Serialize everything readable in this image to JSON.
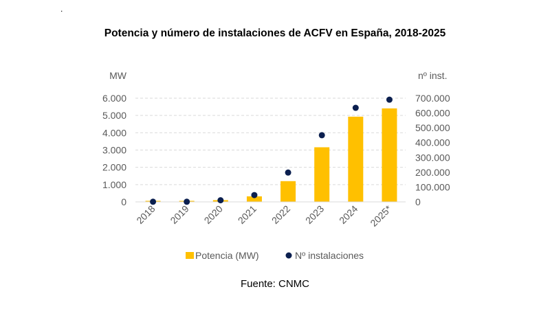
{
  "top_mark": ".",
  "source": "Fuente: CNMC",
  "chart_data": {
    "type": "bar+scatter",
    "title": "Potencia y número de instalaciones de ACFV en España, 2018-2025",
    "categories": [
      "2018",
      "2019",
      "2020",
      "2021",
      "2022",
      "2023",
      "2024",
      "2025*"
    ],
    "ylabel_left": "MW",
    "ylabel_right": "nº inst.",
    "ylim_left": [
      0,
      6000
    ],
    "ylim_right": [
      0,
      700000
    ],
    "yticks_left": [
      "0",
      "1.000",
      "2.000",
      "3.000",
      "4.000",
      "5.000",
      "6.000"
    ],
    "yticks_right": [
      "0",
      "100.000",
      "200.000",
      "300.000",
      "400.000",
      "500.000",
      "600.000",
      "700.000"
    ],
    "grid": true,
    "legend_position": "bottom",
    "series": [
      {
        "name": "Potencia (MW)",
        "type": "bar",
        "axis": "left",
        "color": "#FFC000",
        "values": [
          60,
          60,
          100,
          320,
          1200,
          3160,
          4930,
          5410
        ]
      },
      {
        "name": "Nº  instalaciones",
        "type": "scatter",
        "axis": "right",
        "color": "#0B1F4F",
        "values": [
          1000,
          1000,
          11000,
          46000,
          198000,
          450000,
          635000,
          690000
        ]
      }
    ]
  }
}
